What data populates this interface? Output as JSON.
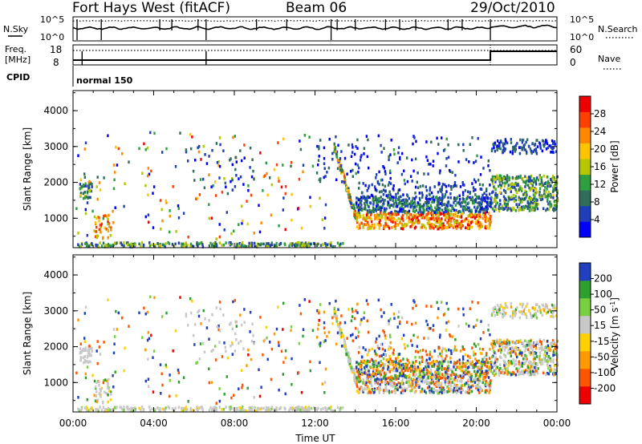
{
  "header": {
    "station": "Fort Hays West (fitACF)",
    "beam": "Beam 06",
    "date": "29/Oct/2010"
  },
  "noise_panel": {
    "left_label": "N.Sky",
    "left_ticks": [
      "10^5",
      "10^0"
    ],
    "right_label": "N.Search",
    "right_ticks": [
      "10^5",
      "10^0"
    ]
  },
  "freq_panel": {
    "left_label_top": "Freq.",
    "left_label_bottom": "[MHz]",
    "left_ticks": [
      "18",
      "8"
    ],
    "right_label": "Nave",
    "right_ticks": [
      "60",
      "0"
    ]
  },
  "cpid": {
    "label": "CPID",
    "value": "normal 150"
  },
  "chart_data": [
    {
      "type": "heatmap",
      "quantity": "Power",
      "ylabel": "Slant Range [km]",
      "ylim": [
        180,
        4560
      ],
      "yticks": [
        "1000",
        "2000",
        "3000",
        "4000"
      ],
      "xlabel": "Time UT",
      "xlim": [
        0,
        24
      ],
      "colorbar_label": "Power [dB]",
      "colorbar_ticks": [
        "28",
        "24",
        "20",
        "16",
        "12",
        "8",
        "4"
      ],
      "colorbar_range": [
        0,
        32
      ],
      "colors": [
        "#0000ff",
        "#1f3fb8",
        "#2e6e5a",
        "#2f9e3f",
        "#b4c600",
        "#ffc400",
        "#ff8800",
        "#ff4000",
        "#ee0000"
      ]
    },
    {
      "type": "heatmap",
      "quantity": "Velocity",
      "ylabel": "Slant Range [km]",
      "ylim": [
        180,
        4560
      ],
      "yticks": [
        "1000",
        "2000",
        "3000",
        "4000"
      ],
      "xlabel": "Time UT",
      "xlim": [
        0,
        24
      ],
      "xticks": [
        "00:00",
        "04:00",
        "08:00",
        "12:00",
        "16:00",
        "20:00",
        "00:00"
      ],
      "colorbar_label": "Velocity [m s^-1]",
      "colorbar_ticks": [
        "200",
        "100",
        "50",
        "15",
        "-15",
        "-50",
        "-100",
        "-200"
      ],
      "colorbar_range": [
        -250,
        250
      ],
      "ground_scatter_color": "#c8c8c8",
      "colors": [
        "#ee0000",
        "#ff5500",
        "#ff9900",
        "#ffd000",
        "#c8c8c8",
        "#78d040",
        "#2ea02e",
        "#2040c0"
      ]
    }
  ]
}
